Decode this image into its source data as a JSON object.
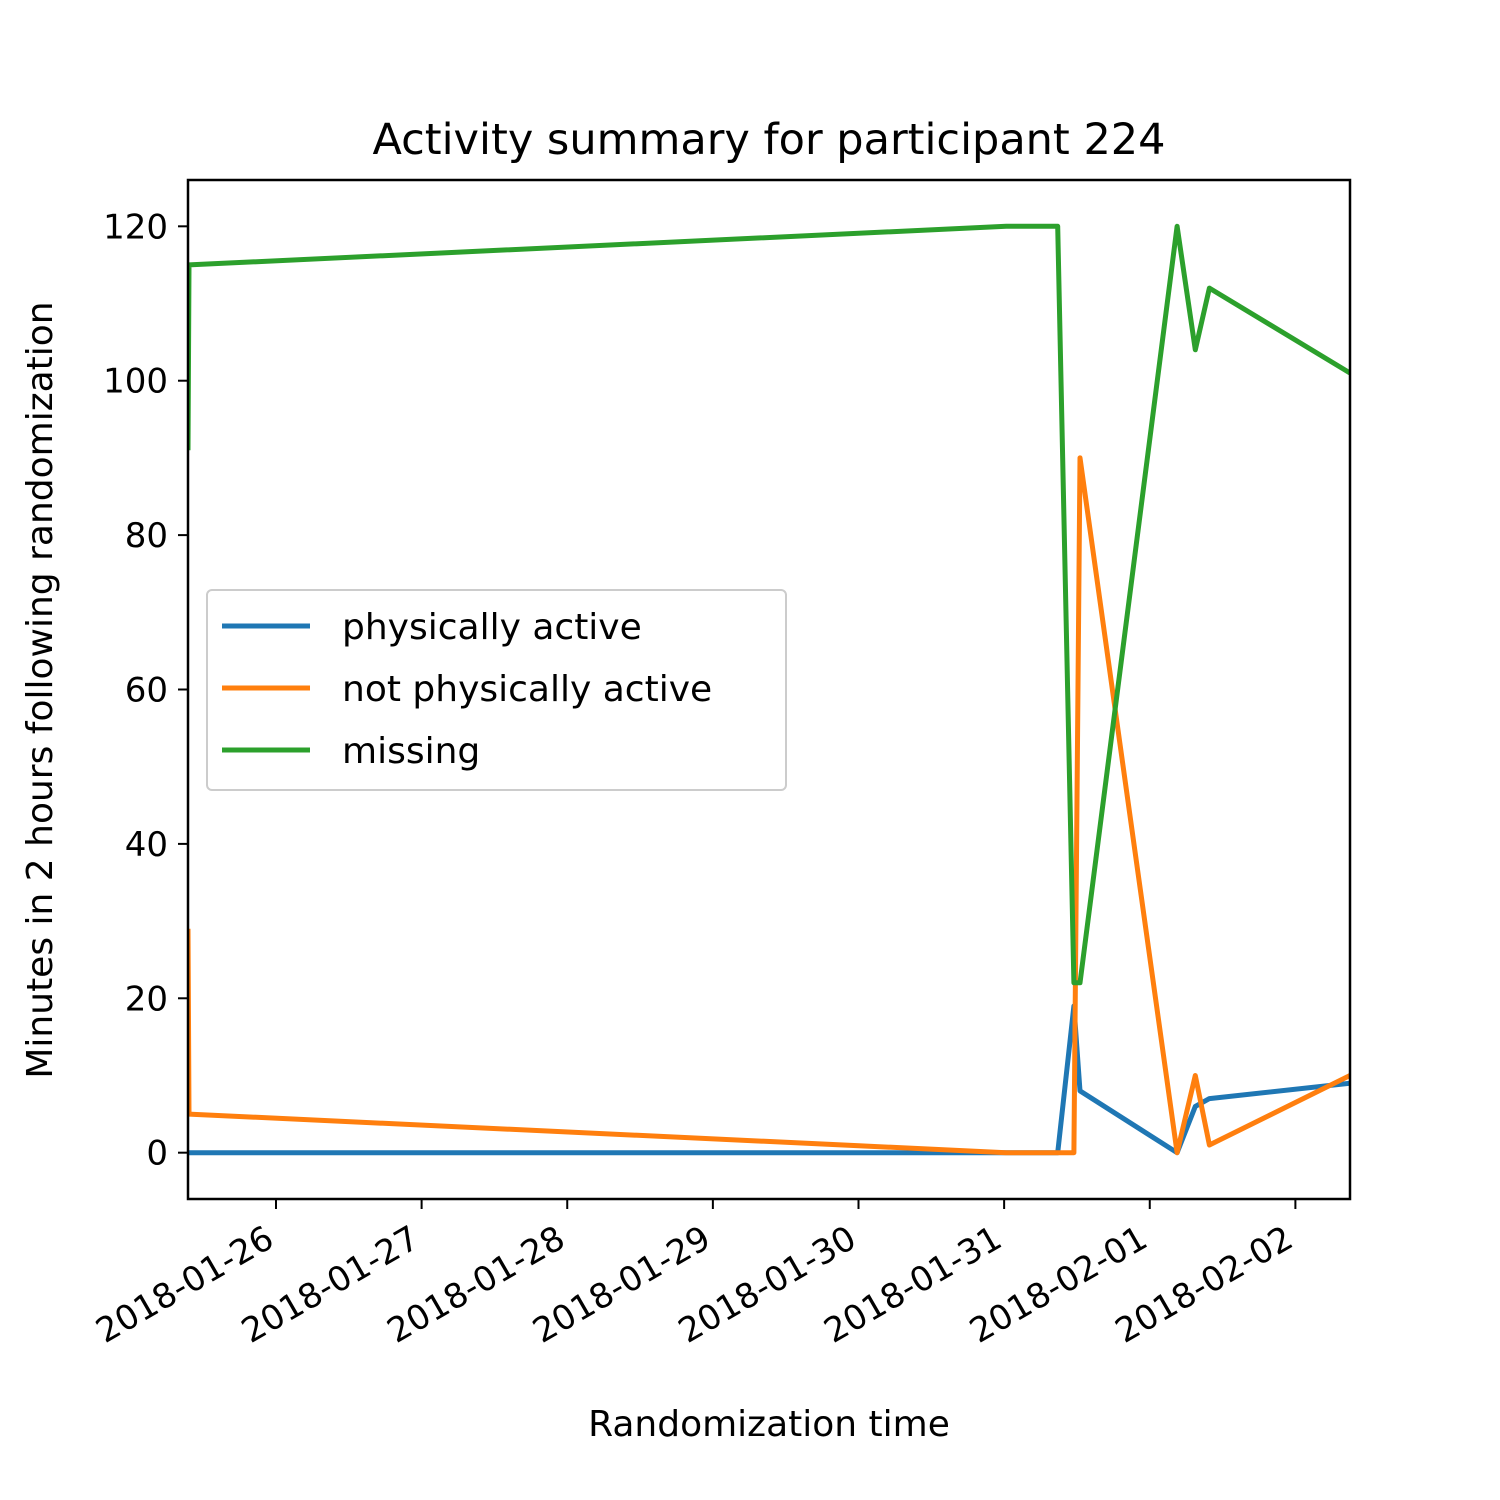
{
  "chart_data": {
    "type": "line",
    "title": "Activity summary for participant 224",
    "xlabel": "Randomization time",
    "ylabel": "Minutes in 2 hours following randomization",
    "xlim": [
      "2018-01-25T09:30",
      "2018-02-02T09:00"
    ],
    "ylim": [
      -6,
      126
    ],
    "xticks": [
      "2018-01-26",
      "2018-01-27",
      "2018-01-28",
      "2018-01-29",
      "2018-01-30",
      "2018-01-31",
      "2018-02-01",
      "2018-02-02"
    ],
    "yticks": [
      0,
      20,
      40,
      60,
      80,
      100,
      120
    ],
    "grid": false,
    "legend_position": "center-left",
    "x": [
      "2018-01-25T09:30",
      "2018-01-25T09:40",
      "2018-01-31T00:20",
      "2018-01-31T08:50",
      "2018-01-31T11:30",
      "2018-01-31T12:30",
      "2018-02-01T04:30",
      "2018-02-01T07:30",
      "2018-02-01T09:50",
      "2018-02-02T09:00"
    ],
    "series": [
      {
        "name": "physically active",
        "color": "#1f77b4",
        "values": [
          0,
          0,
          0,
          0,
          19,
          8,
          0,
          6,
          7,
          9
        ]
      },
      {
        "name": "not physically active",
        "color": "#ff7f0e",
        "values": [
          29,
          5,
          0,
          0,
          0,
          90,
          0,
          10,
          1,
          10
        ]
      },
      {
        "name": "missing",
        "color": "#2ca02c",
        "values": [
          91,
          115,
          120,
          120,
          22,
          22,
          120,
          104,
          112,
          101
        ]
      }
    ]
  }
}
